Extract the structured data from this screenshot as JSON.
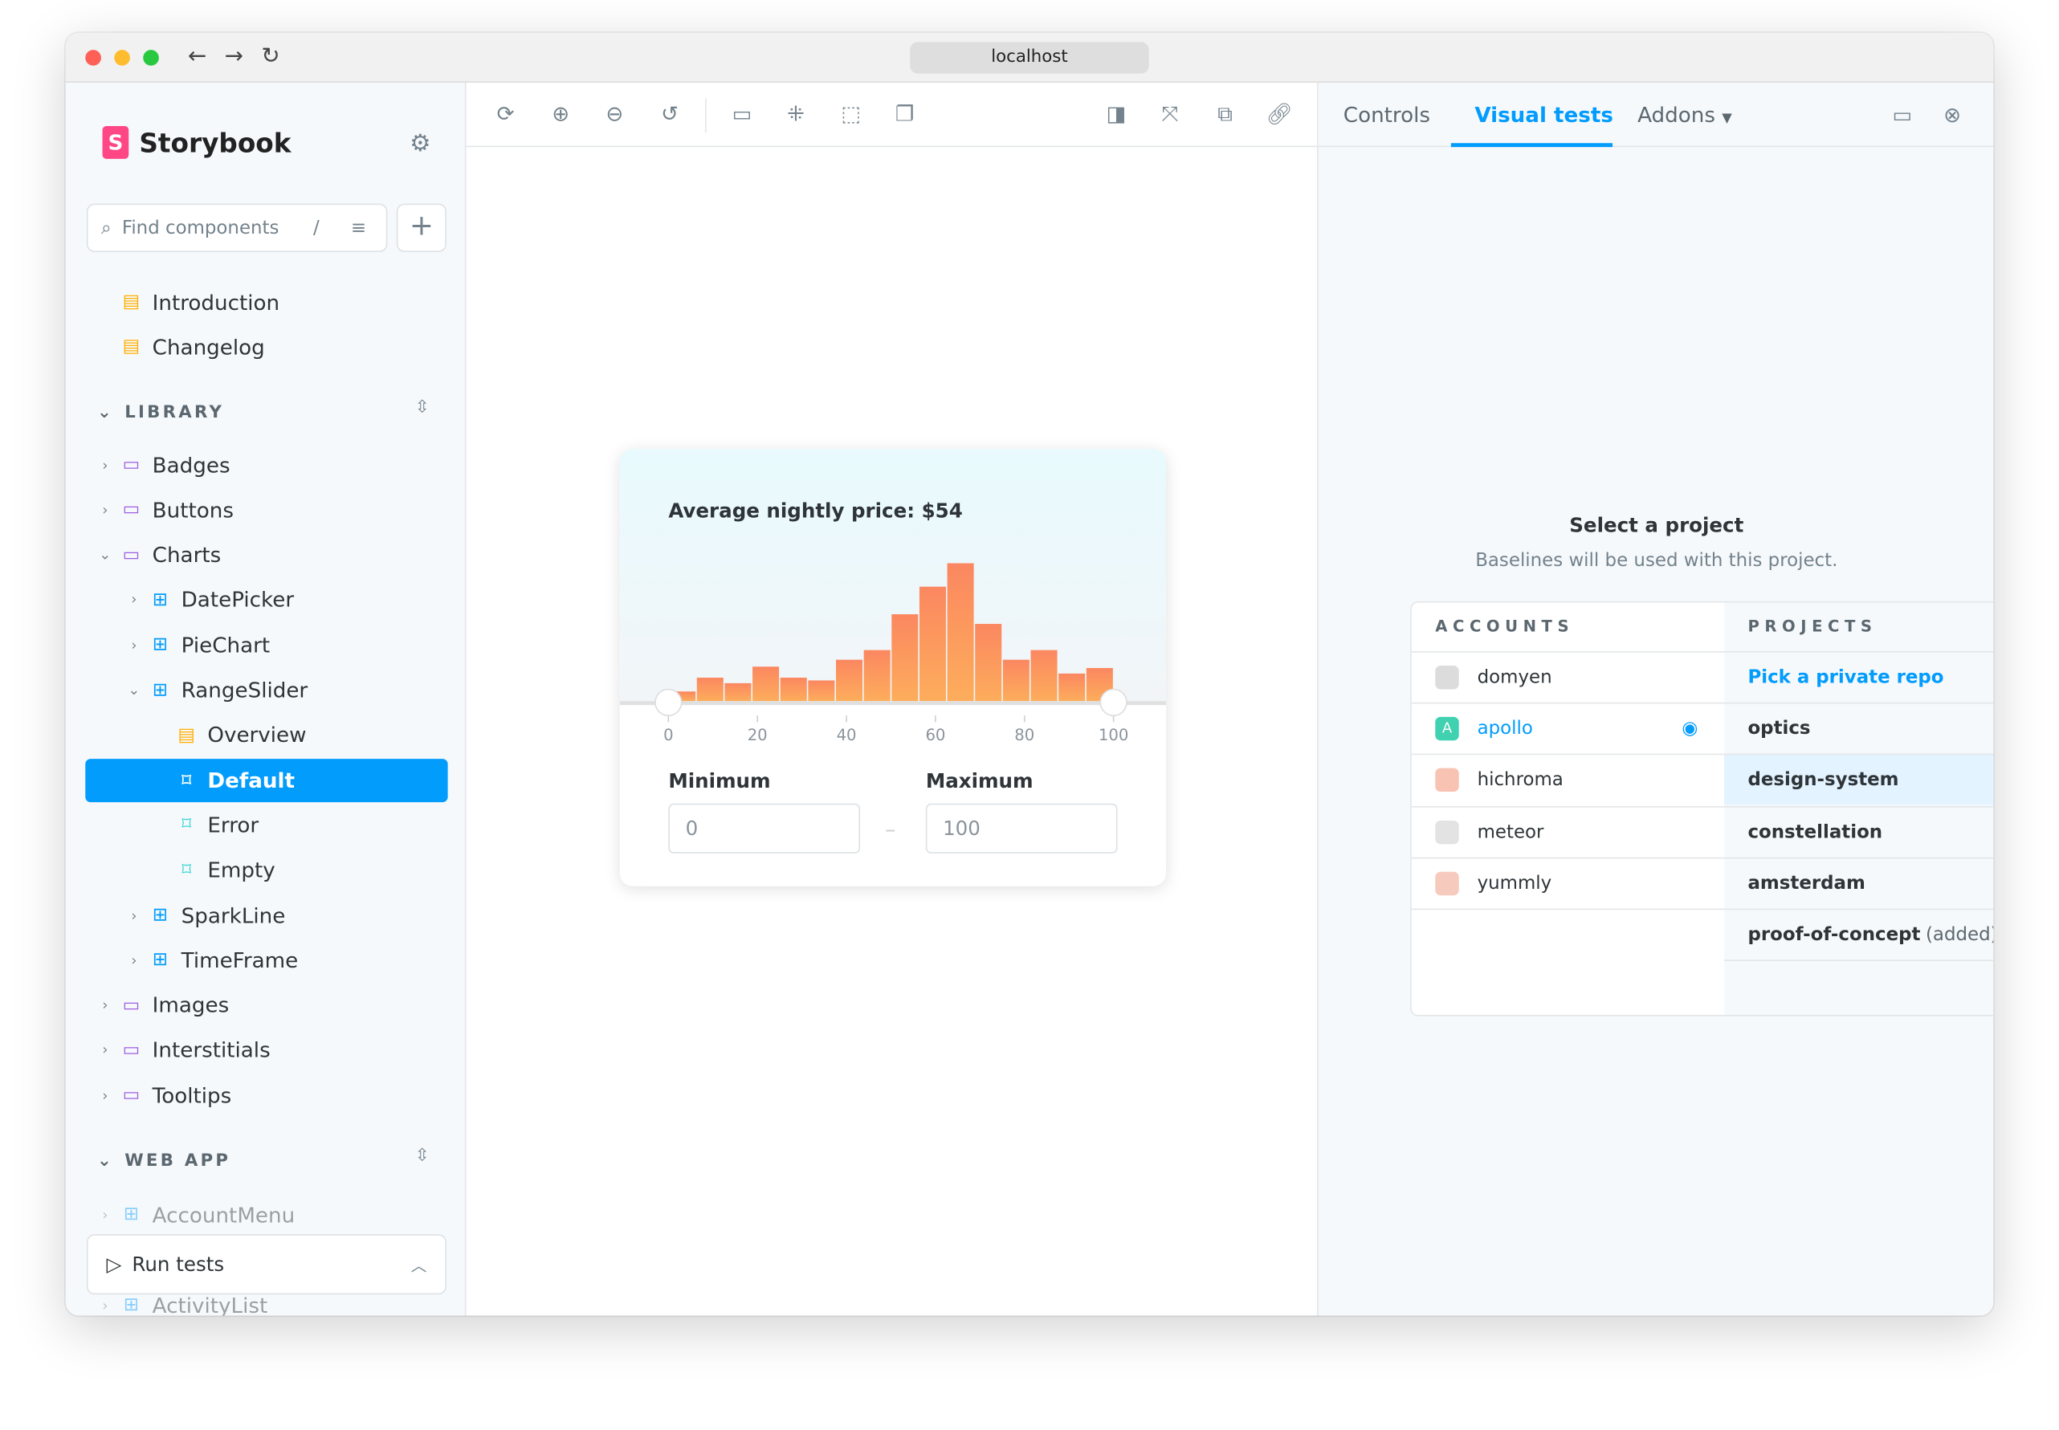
{
  "browser": {
    "url": "localhost"
  },
  "sidebar": {
    "brand": "Storybook",
    "search_placeholder": "Find components",
    "search_shortcut": "/",
    "docs": [
      "Introduction",
      "Changelog"
    ],
    "library_label": "LIBRARY",
    "library": [
      {
        "label": "Badges",
        "type": "folder"
      },
      {
        "label": "Buttons",
        "type": "folder"
      },
      {
        "label": "Charts",
        "type": "folder",
        "expanded": true
      },
      {
        "label": "DatePicker",
        "type": "component"
      },
      {
        "label": "PieChart",
        "type": "component"
      },
      {
        "label": "RangeSlider",
        "type": "component",
        "expanded": true
      },
      {
        "label": "Overview",
        "type": "doc"
      },
      {
        "label": "Default",
        "type": "story",
        "selected": true
      },
      {
        "label": "Error",
        "type": "story"
      },
      {
        "label": "Empty",
        "type": "story"
      },
      {
        "label": "SparkLine",
        "type": "component"
      },
      {
        "label": "TimeFrame",
        "type": "component"
      },
      {
        "label": "Images",
        "type": "folder"
      },
      {
        "label": "Interstitials",
        "type": "folder"
      },
      {
        "label": "Tooltips",
        "type": "folder"
      }
    ],
    "webapp_label": "WEB APP",
    "webapp": [
      "AccountMenu",
      "ActivityList"
    ],
    "run_tests": "Run tests"
  },
  "preview": {
    "title": "Average nightly price: $54",
    "min_label": "Minimum",
    "max_label": "Maximum",
    "min_value": "0",
    "max_value": "100",
    "separator": "–",
    "chart_data": {
      "type": "bar",
      "title": "Average nightly price: $54",
      "x_ticks": [
        "0",
        "20",
        "40",
        "60",
        "80",
        "100"
      ],
      "xlim": [
        0,
        100
      ],
      "values": [
        7,
        17,
        13,
        25,
        17,
        15,
        30,
        37,
        63,
        83,
        100,
        56,
        30,
        37,
        20,
        24
      ],
      "range_selected": [
        0,
        100
      ],
      "colors": {
        "top": "#fb8760",
        "bottom": "#fdad5c"
      }
    }
  },
  "panel": {
    "tabs": [
      "Controls",
      "Visual tests",
      "Addons"
    ],
    "active_tab": "Visual tests",
    "heading": "Select a project",
    "subheading": "Baselines will be used with this project.",
    "accounts_header": "ACCOUNTS",
    "projects_header": "PROJECTS",
    "accounts": [
      {
        "name": "domyen",
        "color": "#dcdcdc"
      },
      {
        "name": "apollo",
        "color": "#3fd1b0",
        "selected": true
      },
      {
        "name": "hichroma",
        "color": "#f9c3b3"
      },
      {
        "name": "meteor",
        "color": "#e3e3e3"
      },
      {
        "name": "yummly",
        "color": "#f6cbbd"
      }
    ],
    "projects": [
      {
        "name": "Pick a private repo",
        "link": true
      },
      {
        "name": "optics"
      },
      {
        "name": "design-system",
        "hovered": true
      },
      {
        "name": "constellation"
      },
      {
        "name": "amsterdam"
      },
      {
        "name": "proof-of-concept",
        "note": "(added)"
      }
    ],
    "accent": "#029cfd"
  }
}
